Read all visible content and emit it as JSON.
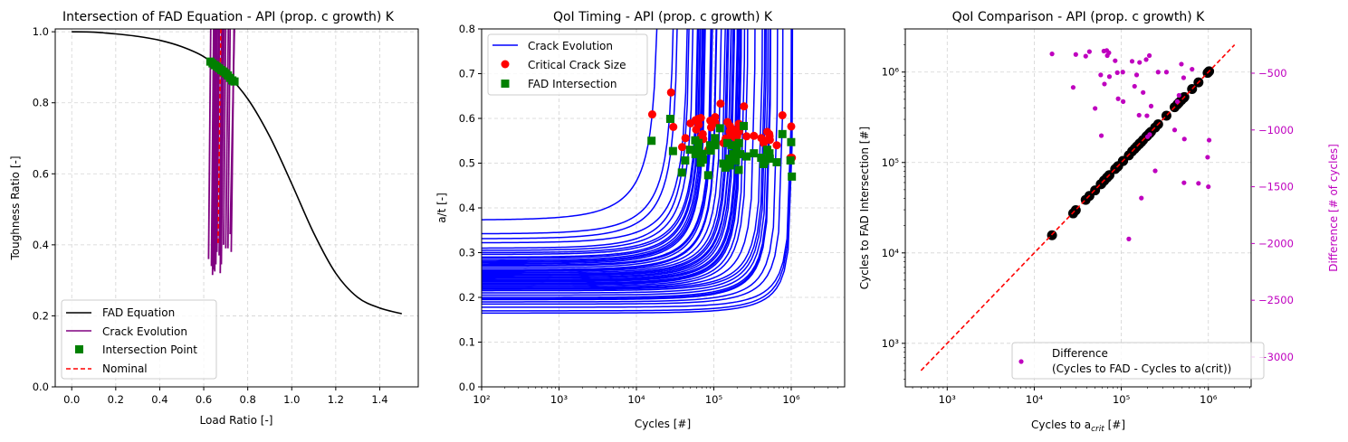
{
  "colors": {
    "fad": "#000000",
    "crack_p1": "#800080",
    "intersection": "#008000",
    "nominal": "#ff0000",
    "crack_p2": "#0000ff",
    "critical": "#ff0000",
    "comparison": "#000000",
    "difference": "#bf00bf",
    "identity": "#ff0000",
    "grid": "#d3d3d3"
  },
  "chart_data": [
    {
      "type": "line",
      "title": "Intersection of FAD Equation - API (prop. c growth) K",
      "xlabel": "Load Ratio [-]",
      "ylabel": "Toughness Ratio [-]",
      "xlim": [
        -0.075,
        1.575
      ],
      "ylim": [
        0,
        1.008
      ],
      "xticks": [
        0.0,
        0.2,
        0.4,
        0.6,
        0.8,
        1.0,
        1.2,
        1.4
      ],
      "xtick_labels": [
        "0.0",
        "0.2",
        "0.4",
        "0.6",
        "0.8",
        "1.0",
        "1.2",
        "1.4"
      ],
      "yticks": [
        0.0,
        0.2,
        0.4,
        0.6,
        0.8,
        1.0
      ],
      "ytick_labels": [
        "0.0",
        "0.2",
        "0.4",
        "0.6",
        "0.8",
        "1.0"
      ],
      "grid": true,
      "legend_position": "lower-left",
      "legend": [
        "FAD Equation",
        "Crack Evolution",
        "Intersection Point",
        "Nominal"
      ],
      "fad_equation": {
        "x": [
          0.0,
          0.1,
          0.2,
          0.3,
          0.4,
          0.5,
          0.6,
          0.7,
          0.8,
          0.9,
          1.0,
          1.1,
          1.2,
          1.3,
          1.4,
          1.5
        ],
        "y": [
          1.0,
          0.999,
          0.994,
          0.987,
          0.976,
          0.958,
          0.93,
          0.883,
          0.811,
          0.705,
          0.572,
          0.433,
          0.32,
          0.252,
          0.222,
          0.206
        ]
      },
      "crack_evolution": [
        {
          "x": [
            0.622,
            0.632
          ],
          "y": [
            0.36,
            1.02
          ]
        },
        {
          "x": [
            0.635,
            0.645
          ],
          "y": [
            0.34,
            1.02
          ]
        },
        {
          "x": [
            0.64,
            0.65
          ],
          "y": [
            0.315,
            1.02
          ]
        },
        {
          "x": [
            0.645,
            0.655
          ],
          "y": [
            0.33,
            1.02
          ]
        },
        {
          "x": [
            0.65,
            0.66
          ],
          "y": [
            0.325,
            1.02
          ]
        },
        {
          "x": [
            0.655,
            0.667
          ],
          "y": [
            0.345,
            1.02
          ]
        },
        {
          "x": [
            0.66,
            0.672
          ],
          "y": [
            0.38,
            1.02
          ]
        },
        {
          "x": [
            0.67,
            0.682
          ],
          "y": [
            0.37,
            1.02
          ]
        },
        {
          "x": [
            0.675,
            0.687
          ],
          "y": [
            0.32,
            1.02
          ]
        },
        {
          "x": [
            0.68,
            0.692
          ],
          "y": [
            0.345,
            1.02
          ]
        },
        {
          "x": [
            0.69,
            0.7
          ],
          "y": [
            0.4,
            1.02
          ]
        },
        {
          "x": [
            0.7,
            0.712
          ],
          "y": [
            0.39,
            1.02
          ]
        },
        {
          "x": [
            0.71,
            0.72
          ],
          "y": [
            0.39,
            1.02
          ]
        },
        {
          "x": [
            0.72,
            0.74
          ],
          "y": [
            0.43,
            1.02
          ]
        },
        {
          "x": [
            0.725,
            0.738
          ],
          "y": [
            0.38,
            1.02
          ]
        }
      ],
      "intersection_points": {
        "x": [
          0.63,
          0.64,
          0.65,
          0.66,
          0.67,
          0.68,
          0.69,
          0.7,
          0.71,
          0.72,
          0.73,
          0.74
        ],
        "y": [
          0.916,
          0.911,
          0.906,
          0.902,
          0.897,
          0.892,
          0.888,
          0.883,
          0.877,
          0.87,
          0.863,
          0.86
        ]
      },
      "nominal": {
        "x": [
          0.665,
          0.678
        ],
        "y": [
          0.405,
          1.01
        ]
      }
    },
    {
      "type": "line",
      "title": "QoI Timing - API (prop. c growth) K",
      "xlabel": "Cycles [#]",
      "ylabel": "a/t [-]",
      "xscale": "log",
      "xlim": [
        100,
        4900000
      ],
      "ylim": [
        0,
        0.8
      ],
      "xticks": [
        100,
        1000,
        10000,
        100000,
        1000000
      ],
      "xtick_labels": [
        "10²",
        "10³",
        "10⁴",
        "10⁵",
        "10⁶"
      ],
      "yticks": [
        0.0,
        0.1,
        0.2,
        0.3,
        0.4,
        0.5,
        0.6,
        0.7,
        0.8
      ],
      "ytick_labels": [
        "0.0",
        "0.1",
        "0.2",
        "0.3",
        "0.4",
        "0.5",
        "0.6",
        "0.7",
        "0.8"
      ],
      "grid": true,
      "legend_position": "top-left",
      "legend": [
        "Crack Evolution",
        "Critical Crack Size",
        "FAD Intersection"
      ],
      "samples_columns": [
        "cycles_to_a_crit",
        "initial_a_t",
        "critical_a_t",
        "fad_a_t",
        "difference_cycles"
      ],
      "samples": [
        [
          16000,
          0.373,
          0.609,
          0.55,
          -330
        ],
        [
          28000,
          0.342,
          0.658,
          0.599,
          -625
        ],
        [
          30000,
          0.331,
          0.581,
          0.527,
          -335
        ],
        [
          39000,
          0.322,
          0.536,
          0.479,
          -350
        ],
        [
          43000,
          0.31,
          0.556,
          0.506,
          -310
        ],
        [
          50000,
          0.305,
          0.589,
          0.53,
          -810
        ],
        [
          58000,
          0.3,
          0.596,
          0.551,
          -515
        ],
        [
          59000,
          0.296,
          0.575,
          0.52,
          -1050
        ],
        [
          63000,
          0.29,
          0.599,
          0.536,
          -305
        ],
        [
          64000,
          0.287,
          0.586,
          0.545,
          -595
        ],
        [
          68000,
          0.283,
          0.601,
          0.501,
          -300
        ],
        [
          69000,
          0.28,
          0.56,
          0.51,
          -345
        ],
        [
          72000,
          0.278,
          0.565,
          0.521,
          -320
        ],
        [
          73000,
          0.275,
          0.554,
          0.508,
          -530
        ],
        [
          85000,
          0.272,
          0.53,
          0.473,
          -390
        ],
        [
          90000,
          0.27,
          0.595,
          0.54,
          -495
        ],
        [
          92000,
          0.266,
          0.58,
          0.528,
          -725
        ],
        [
          104000,
          0.262,
          0.603,
          0.556,
          -490
        ],
        [
          105000,
          0.26,
          0.59,
          0.54,
          -750
        ],
        [
          122000,
          0.258,
          0.633,
          0.578,
          -1960
        ],
        [
          133000,
          0.255,
          0.545,
          0.499,
          -395
        ],
        [
          142000,
          0.252,
          0.555,
          0.49,
          -615
        ],
        [
          150000,
          0.25,
          0.592,
          0.545,
          -515
        ],
        [
          160000,
          0.248,
          0.57,
          0.51,
          -870
        ],
        [
          162000,
          0.245,
          0.583,
          0.495,
          -405
        ],
        [
          170000,
          0.243,
          0.56,
          0.54,
          -1600
        ],
        [
          178000,
          0.24,
          0.575,
          0.52,
          -670
        ],
        [
          193000,
          0.238,
          0.565,
          0.505,
          -380
        ],
        [
          197000,
          0.235,
          0.55,
          0.53,
          -875
        ],
        [
          200000,
          0.236,
          0.56,
          0.535,
          -1060
        ],
        [
          210000,
          0.232,
          0.588,
          0.485,
          -345
        ],
        [
          212000,
          0.23,
          0.57,
          0.545,
          -1040
        ],
        [
          220000,
          0.228,
          0.58,
          0.52,
          -790
        ],
        [
          245000,
          0.225,
          0.627,
          0.583,
          -1360
        ],
        [
          265000,
          0.222,
          0.56,
          0.515,
          -490
        ],
        [
          330000,
          0.22,
          0.561,
          0.522,
          -490
        ],
        [
          410000,
          0.218,
          0.556,
          0.512,
          -1000
        ],
        [
          440000,
          0.215,
          0.545,
          0.498,
          -750
        ],
        [
          460000,
          0.21,
          0.55,
          0.505,
          -695
        ],
        [
          490000,
          0.205,
          0.57,
          0.53,
          -420
        ],
        [
          520000,
          0.2,
          0.565,
          0.515,
          -540
        ],
        [
          525000,
          0.197,
          0.56,
          0.522,
          -1465
        ],
        [
          530000,
          0.195,
          0.552,
          0.51,
          -1080
        ],
        [
          650000,
          0.19,
          0.54,
          0.502,
          -465
        ],
        [
          770000,
          0.185,
          0.607,
          0.565,
          -1470
        ],
        [
          980000,
          0.178,
          0.512,
          0.506,
          -1240
        ],
        [
          1000000,
          0.17,
          0.582,
          0.547,
          -1500
        ],
        [
          1020000,
          0.165,
          0.512,
          0.47,
          -1090
        ]
      ]
    },
    {
      "type": "scatter",
      "title": "QoI Comparison - API (prop. c growth) K",
      "xlabel": {
        "text": "Cycles to a",
        "sub": "crit",
        "suffix": " [#]"
      },
      "ylabel": "Cycles to FAD Intersection [#]",
      "y2label": "Difference [# of cycles]",
      "xscale": "log",
      "yscale": "log",
      "xlim": [
        330,
        3100000
      ],
      "ylim": [
        330,
        3000000
      ],
      "y2lim": [
        -3263,
        -110
      ],
      "xticks": [
        1000,
        10000,
        100000,
        1000000
      ],
      "xtick_labels": [
        "10³",
        "10⁴",
        "10⁵",
        "10⁶"
      ],
      "yticks": [
        1000,
        10000,
        100000,
        1000000
      ],
      "ytick_labels": [
        "10³",
        "10⁴",
        "10⁵",
        "10⁶"
      ],
      "y2ticks": [
        -500,
        -1000,
        -1500,
        -2000,
        -2500,
        -3000
      ],
      "y2tick_labels": [
        "−500",
        "−1000",
        "−1500",
        "−2000",
        "−2500",
        "−3000"
      ],
      "identity_line": {
        "x": [
          500,
          2000000
        ],
        "y": [
          500,
          2000000
        ]
      },
      "grid": true,
      "legend_position": "lower-right",
      "legend": [
        "Difference",
        "(Cycles to FAD - Cycles to a(crit))"
      ],
      "data_source": "samples of panel 2: x = cycles_to_a_crit, y = cycles_to_a_crit + difference_cycles, y2 = difference_cycles"
    }
  ]
}
